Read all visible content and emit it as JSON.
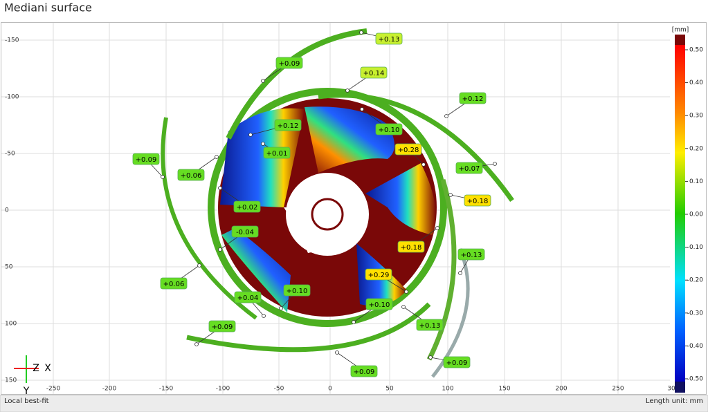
{
  "title": "Mediani surface",
  "x_ticks": [
    "-250",
    "-200",
    "-150",
    "-100",
    "-50",
    "0",
    "50",
    "100",
    "150",
    "200",
    "250",
    "30"
  ],
  "y_ticks": [
    "-150",
    "-100",
    "-50",
    "0",
    "50",
    "100",
    "150"
  ],
  "color_scale": {
    "unit": "[mm]",
    "ticks": [
      "0.50",
      "0.40",
      "0.30",
      "0.20",
      "0.10",
      "0.00",
      "-0.10",
      "-0.20",
      "-0.30",
      "-0.40",
      "-0.50"
    ]
  },
  "annotations": [
    "+0.13",
    "+0.09",
    "+0.14",
    "+0.12",
    "+0.12",
    "+0.10",
    "+0.28",
    "+0.01",
    "+0.09",
    "+0.06",
    "+0.07",
    "+0.18",
    "+0.02",
    "-0.04",
    "+0.18",
    "+0.13",
    "+0.29",
    "+0.06",
    "+0.10",
    "+0.04",
    "+0.10",
    "+0.13",
    "+0.09",
    "+0.09",
    "+0.09"
  ],
  "axis_triad": {
    "z": "Z",
    "x": "X",
    "y": "Y"
  },
  "footer": {
    "left": "Local best-fit",
    "right": "Length unit: mm"
  }
}
